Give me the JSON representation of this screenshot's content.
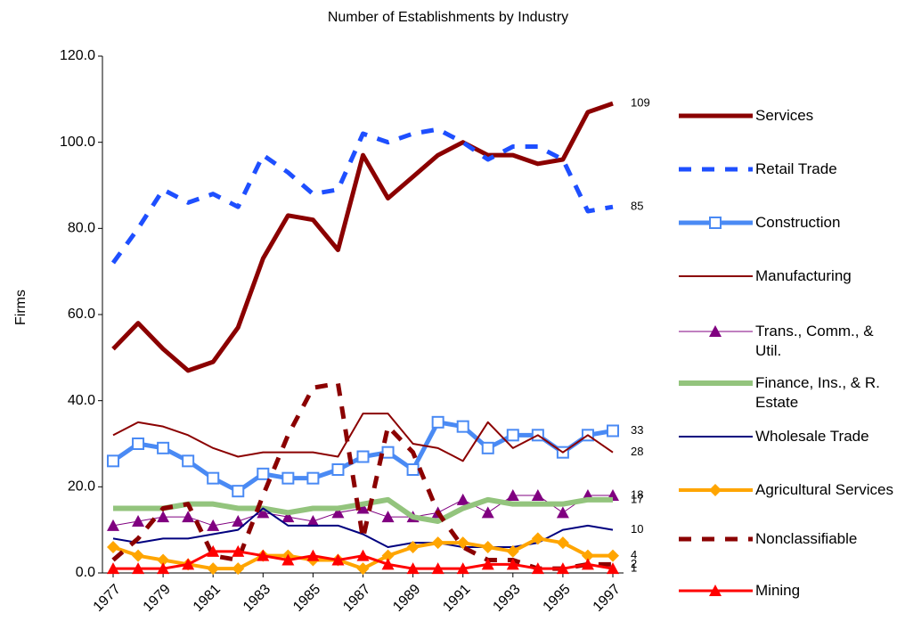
{
  "chart_data": {
    "type": "line",
    "title": "Number of Establishments by Industry",
    "y_label": "Firms",
    "x": [
      1977,
      1978,
      1979,
      1980,
      1981,
      1982,
      1983,
      1984,
      1985,
      1986,
      1987,
      1988,
      1989,
      1990,
      1991,
      1992,
      1993,
      1994,
      1995,
      1996,
      1997
    ],
    "xlim": [
      1977,
      1997
    ],
    "xticks": [
      1977,
      1979,
      1981,
      1983,
      1985,
      1987,
      1989,
      1991,
      1993,
      1995,
      1997
    ],
    "ylim": [
      0,
      120
    ],
    "yticks": [
      {
        "value": 0,
        "label": "0.0"
      },
      {
        "value": 20,
        "label": "20.0"
      },
      {
        "value": 40,
        "label": "40.0"
      },
      {
        "value": 60,
        "label": "60.0"
      },
      {
        "value": 80,
        "label": "80.0"
      },
      {
        "value": 100,
        "label": "100.0"
      },
      {
        "value": 120,
        "label": "120.0"
      }
    ],
    "legend": "right",
    "series": [
      {
        "name": "Services",
        "color": "#8b0000",
        "line_width": 5,
        "dashed": false,
        "marker": "none",
        "values": [
          52,
          58,
          52,
          47,
          49,
          57,
          73,
          83,
          82,
          75,
          97,
          87,
          92,
          97,
          100,
          97,
          97,
          95,
          96,
          107,
          109
        ]
      },
      {
        "name": "Retail Trade",
        "color": "#1e4fff",
        "line_width": 5,
        "dashed": true,
        "marker": "none",
        "values": [
          72,
          80,
          89,
          86,
          88,
          85,
          97,
          93,
          88,
          89,
          102,
          100,
          102,
          103,
          100,
          96,
          99,
          99,
          96,
          84,
          85
        ]
      },
      {
        "name": "Construction",
        "color": "#4a8af4",
        "line_width": 5,
        "dashed": false,
        "marker": "square",
        "values": [
          26,
          30,
          29,
          26,
          22,
          19,
          23,
          22,
          22,
          24,
          27,
          28,
          24,
          35,
          34,
          29,
          32,
          32,
          28,
          32,
          33
        ]
      },
      {
        "name": "Manufacturing",
        "color": "#8b0000",
        "line_width": 2,
        "dashed": false,
        "marker": "none",
        "values": [
          32,
          35,
          34,
          32,
          29,
          27,
          28,
          28,
          28,
          27,
          37,
          37,
          30,
          29,
          26,
          35,
          29,
          32,
          28,
          32,
          28
        ]
      },
      {
        "name": "Trans., Comm., & Util.",
        "color": "#800080",
        "line_width": 1,
        "dashed": false,
        "marker": "triangle",
        "values": [
          11,
          12,
          13,
          13,
          11,
          12,
          14,
          13,
          12,
          14,
          15,
          13,
          13,
          14,
          17,
          14,
          18,
          18,
          14,
          18,
          18
        ]
      },
      {
        "name": "Finance, Ins., & R. Estate",
        "color": "#93c47d",
        "line_width": 6,
        "dashed": false,
        "marker": "none",
        "values": [
          15,
          15,
          15,
          16,
          16,
          15,
          15,
          14,
          15,
          15,
          16,
          17,
          13,
          12,
          15,
          17,
          16,
          16,
          16,
          17,
          17
        ]
      },
      {
        "name": "Wholesale Trade",
        "color": "#00007f",
        "line_width": 2,
        "dashed": false,
        "marker": "none",
        "values": [
          8,
          7,
          8,
          8,
          9,
          10,
          15,
          11,
          11,
          11,
          9,
          6,
          7,
          7,
          6,
          6,
          6,
          7,
          10,
          11,
          10
        ]
      },
      {
        "name": "Agricultural Services",
        "color": "#ffa500",
        "line_width": 4,
        "dashed": false,
        "marker": "diamond",
        "values": [
          6,
          4,
          3,
          2,
          1,
          1,
          4,
          4,
          3,
          3,
          1,
          4,
          6,
          7,
          7,
          6,
          5,
          8,
          7,
          4,
          4
        ]
      },
      {
        "name": "Nonclassifiable",
        "color": "#8b0000",
        "line_width": 5,
        "dashed": true,
        "marker": "none",
        "values": [
          3,
          8,
          15,
          16,
          4,
          3,
          18,
          32,
          43,
          44,
          8,
          34,
          28,
          14,
          6,
          3,
          3,
          1,
          1,
          2,
          2
        ]
      },
      {
        "name": "Mining",
        "color": "#ff0000",
        "line_width": 3,
        "dashed": false,
        "marker": "triangle",
        "values": [
          1,
          1,
          1,
          2,
          5,
          5,
          4,
          3,
          4,
          3,
          4,
          2,
          1,
          1,
          1,
          2,
          2,
          1,
          1,
          2,
          1
        ]
      }
    ]
  }
}
